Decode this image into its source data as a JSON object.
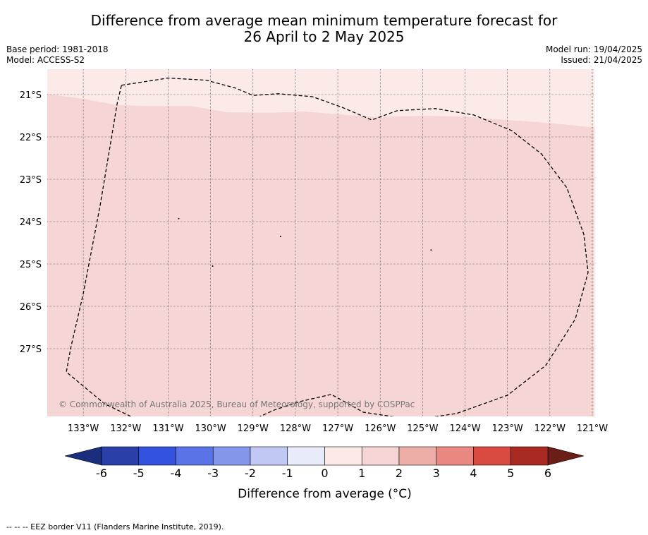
{
  "header": {
    "title_line1": "Difference from average mean minimum temperature forecast for",
    "title_line2": "26 April to 2 May 2025",
    "base_period": "Base period: 1981-2018",
    "model": "Model: ACCESS-S2",
    "model_run": "Model run: 19/04/2025",
    "issued": "Issued: 21/04/2025"
  },
  "map": {
    "lon_range": [
      -133.85,
      -120.95
    ],
    "lat_range": [
      -28.6,
      -20.4
    ],
    "lat_ticks": [
      {
        "value": -21,
        "label": "21°S"
      },
      {
        "value": -22,
        "label": "22°S"
      },
      {
        "value": -23,
        "label": "23°S"
      },
      {
        "value": -24,
        "label": "24°S"
      },
      {
        "value": -25,
        "label": "25°S"
      },
      {
        "value": -26,
        "label": "26°S"
      },
      {
        "value": -27,
        "label": "27°S"
      }
    ],
    "lon_ticks": [
      {
        "value": -133,
        "label": "133°W"
      },
      {
        "value": -132,
        "label": "132°W"
      },
      {
        "value": -131,
        "label": "131°W"
      },
      {
        "value": -130,
        "label": "130°W"
      },
      {
        "value": -129,
        "label": "129°W"
      },
      {
        "value": -128,
        "label": "128°W"
      },
      {
        "value": -127,
        "label": "127°W"
      },
      {
        "value": -126,
        "label": "126°W"
      },
      {
        "value": -125,
        "label": "125°W"
      },
      {
        "value": -124,
        "label": "124°W"
      },
      {
        "value": -123,
        "label": "123°W"
      },
      {
        "value": -122,
        "label": "122°W"
      },
      {
        "value": -121,
        "label": "121°W"
      }
    ],
    "colors": {
      "band_0_1": "#fceae8",
      "band_1_2": "#f5d6d4"
    },
    "band_boundary": [
      [
        -133.85,
        -20.99
      ],
      [
        -133.0,
        -21.1
      ],
      [
        -132.2,
        -21.25
      ],
      [
        -131.4,
        -21.27
      ],
      [
        -130.45,
        -21.27
      ],
      [
        -129.6,
        -21.42
      ],
      [
        -128.5,
        -21.43
      ],
      [
        -127.8,
        -21.4
      ],
      [
        -126.8,
        -21.48
      ],
      [
        -126.1,
        -21.53
      ],
      [
        -125.0,
        -21.5
      ],
      [
        -124.0,
        -21.52
      ],
      [
        -123.3,
        -21.58
      ],
      [
        -122.3,
        -21.65
      ],
      [
        -121.6,
        -21.71
      ],
      [
        -120.95,
        -21.78
      ]
    ],
    "eez_border": [
      [
        -132.1,
        -20.78
      ],
      [
        -131.0,
        -20.61
      ],
      [
        -130.1,
        -20.66
      ],
      [
        -129.4,
        -20.85
      ],
      [
        -129.0,
        -21.02
      ],
      [
        -128.4,
        -20.98
      ],
      [
        -127.6,
        -21.05
      ],
      [
        -126.9,
        -21.3
      ],
      [
        -126.2,
        -21.6
      ],
      [
        -125.6,
        -21.38
      ],
      [
        -124.7,
        -21.33
      ],
      [
        -123.8,
        -21.48
      ],
      [
        -122.9,
        -21.85
      ],
      [
        -122.2,
        -22.4
      ],
      [
        -121.6,
        -23.2
      ],
      [
        -121.2,
        -24.3
      ],
      [
        -121.1,
        -25.2
      ],
      [
        -121.4,
        -26.3
      ],
      [
        -122.1,
        -27.4
      ],
      [
        -123.0,
        -28.1
      ],
      [
        -124.2,
        -28.53
      ],
      [
        -125.2,
        -28.68
      ],
      [
        -126.4,
        -28.5
      ],
      [
        -127.15,
        -28.08
      ],
      [
        -127.9,
        -28.25
      ],
      [
        -128.5,
        -28.45
      ],
      [
        -129.2,
        -28.77
      ],
      [
        -130.0,
        -28.91
      ],
      [
        -131.3,
        -28.88
      ],
      [
        -132.5,
        -28.3
      ],
      [
        -133.4,
        -27.55
      ],
      [
        -133.3,
        -27.0
      ],
      [
        -133.0,
        -25.7
      ],
      [
        -132.6,
        -23.6
      ],
      [
        -132.2,
        -21.2
      ],
      [
        -132.1,
        -20.78
      ]
    ],
    "copyright": "© Commonwealth of Australia 2025, Bureau of Meteorology, supported by COSPPac"
  },
  "colorbar": {
    "title": "Difference from average (°C)",
    "ticks": [
      "-6",
      "-5",
      "-4",
      "-3",
      "-2",
      "-1",
      "0",
      "1",
      "2",
      "3",
      "4",
      "5",
      "6"
    ],
    "colors": [
      "#2a3fa8",
      "#3352de",
      "#5a73e6",
      "#8496ec",
      "#c1c8f4",
      "#e8ebfa",
      "#fceae8",
      "#f5d6d4",
      "#edaea8",
      "#e88880",
      "#d94a40",
      "#a92a22"
    ],
    "under_color": "#1b2e7d",
    "over_color": "#6b1d18"
  },
  "footnote": "-- -- -- EEZ border V11 (Flanders Marine Institute, 2019)."
}
